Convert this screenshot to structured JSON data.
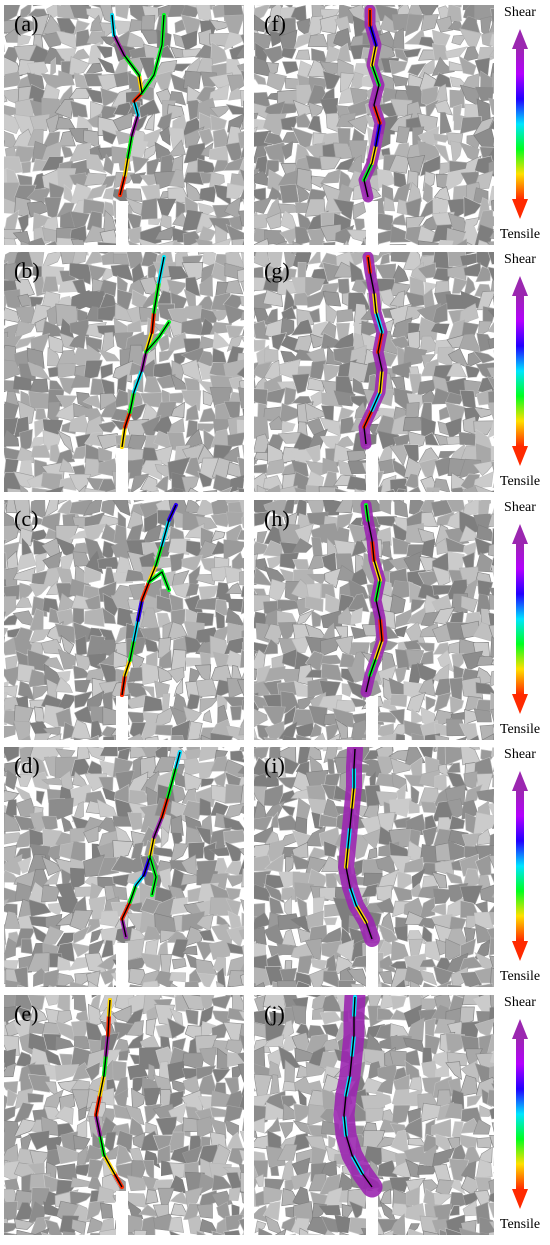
{
  "colors": {
    "grain_palette": [
      "#8c8c8c",
      "#9a9a9a",
      "#a8a8a8",
      "#b4b4b4",
      "#c0c0c0",
      "#cbcbcb",
      "#7e7e7e"
    ],
    "crack_core": "#000000",
    "shear": "#9b27b0",
    "tensile": "#ff2a00"
  },
  "colorbar": {
    "top_label": "Shear",
    "bottom_label": "Tensile",
    "gradient": [
      "#9b27b0",
      "#b400ff",
      "#2200ff",
      "#00e5ff",
      "#00ff20",
      "#ffe000",
      "#ff2a00"
    ]
  },
  "panels": [
    {
      "label": "(a)",
      "crack": [
        [
          116,
          190
        ],
        [
          121,
          170
        ],
        [
          124,
          152
        ],
        [
          128,
          130
        ],
        [
          134,
          110
        ],
        [
          130,
          96
        ],
        [
          138,
          88
        ],
        [
          135,
          70
        ],
        [
          120,
          50
        ],
        [
          110,
          30
        ],
        [
          108,
          10
        ]
      ],
      "branch": [
        [
          138,
          88
        ],
        [
          150,
          70
        ],
        [
          158,
          40
        ],
        [
          160,
          10
        ]
      ],
      "marks": [
        "#ff2a00",
        "#ffe000",
        "#00ff20",
        "#9b27b0",
        "#00e5ff"
      ],
      "halo": 0
    },
    {
      "label": "(b)",
      "crack": [
        [
          118,
          195
        ],
        [
          121,
          175
        ],
        [
          126,
          160
        ],
        [
          130,
          140
        ],
        [
          138,
          118
        ],
        [
          142,
          100
        ],
        [
          148,
          80
        ],
        [
          150,
          60
        ],
        [
          155,
          30
        ],
        [
          160,
          5
        ]
      ],
      "branch": [
        [
          142,
          100
        ],
        [
          155,
          85
        ],
        [
          165,
          70
        ]
      ],
      "marks": [
        "#ffe000",
        "#ff2a00",
        "#00ff20",
        "#00e5ff",
        "#9b27b0"
      ],
      "halo": 0
    },
    {
      "label": "(c)",
      "crack": [
        [
          118,
          195
        ],
        [
          121,
          175
        ],
        [
          126,
          160
        ],
        [
          130,
          140
        ],
        [
          134,
          120
        ],
        [
          138,
          100
        ],
        [
          145,
          82
        ],
        [
          152,
          65
        ],
        [
          158,
          45
        ],
        [
          165,
          20
        ],
        [
          172,
          5
        ]
      ],
      "branch": [
        [
          145,
          82
        ],
        [
          158,
          72
        ],
        [
          165,
          90
        ]
      ],
      "marks": [
        "#ff2a00",
        "#ffe000",
        "#00ff20",
        "#00e5ff",
        "#2200ff"
      ],
      "halo": 0
    },
    {
      "label": "(d)",
      "crack": [
        [
          122,
          190
        ],
        [
          118,
          172
        ],
        [
          126,
          155
        ],
        [
          132,
          138
        ],
        [
          140,
          128
        ],
        [
          146,
          110
        ],
        [
          150,
          90
        ],
        [
          158,
          70
        ],
        [
          164,
          50
        ],
        [
          172,
          20
        ],
        [
          176,
          5
        ]
      ],
      "branch": [
        [
          146,
          110
        ],
        [
          152,
          130
        ],
        [
          148,
          148
        ]
      ],
      "marks": [
        "#9b27b0",
        "#ff2a00",
        "#00ff20",
        "#00e5ff",
        "#2200ff",
        "#ffe000"
      ],
      "halo": 0
    },
    {
      "label": "(e)",
      "crack": [
        [
          118,
          192
        ],
        [
          110,
          178
        ],
        [
          100,
          160
        ],
        [
          96,
          140
        ],
        [
          92,
          120
        ],
        [
          96,
          100
        ],
        [
          100,
          80
        ],
        [
          102,
          60
        ],
        [
          104,
          40
        ],
        [
          105,
          20
        ],
        [
          106,
          5
        ]
      ],
      "branch": [],
      "marks": [
        "#ff2a00",
        "#ffe000",
        "#00ff20",
        "#9b27b0"
      ],
      "halo": 0
    },
    {
      "label": "(f)",
      "crack": [
        [
          114,
          192
        ],
        [
          110,
          175
        ],
        [
          118,
          158
        ],
        [
          122,
          140
        ],
        [
          126,
          118
        ],
        [
          120,
          100
        ],
        [
          125,
          80
        ],
        [
          118,
          60
        ],
        [
          122,
          40
        ],
        [
          116,
          20
        ],
        [
          116,
          5
        ]
      ],
      "branch": [],
      "marks": [
        "#9b27b0",
        "#00ff20",
        "#ffe000",
        "#2200ff",
        "#ff2a00"
      ],
      "halo": 1
    },
    {
      "label": "(g)",
      "crack": [
        [
          112,
          192
        ],
        [
          110,
          175
        ],
        [
          118,
          158
        ],
        [
          126,
          140
        ],
        [
          128,
          118
        ],
        [
          124,
          100
        ],
        [
          128,
          80
        ],
        [
          122,
          60
        ],
        [
          120,
          40
        ],
        [
          116,
          20
        ],
        [
          114,
          5
        ]
      ],
      "branch": [],
      "marks": [
        "#9b27b0",
        "#ff2a00",
        "#00e5ff",
        "#ffe000"
      ],
      "halo": 1
    },
    {
      "label": "(h)",
      "crack": [
        [
          112,
          192
        ],
        [
          116,
          175
        ],
        [
          122,
          158
        ],
        [
          128,
          140
        ],
        [
          126,
          118
        ],
        [
          122,
          100
        ],
        [
          126,
          80
        ],
        [
          120,
          60
        ],
        [
          118,
          40
        ],
        [
          114,
          20
        ],
        [
          112,
          5
        ]
      ],
      "branch": [],
      "marks": [
        "#9b27b0",
        "#00ff20",
        "#ffe000",
        "#ff2a00"
      ],
      "halo": 1
    },
    {
      "label": "(i)",
      "crack": [
        [
          118,
          192
        ],
        [
          112,
          175
        ],
        [
          102,
          158
        ],
        [
          96,
          140
        ],
        [
          92,
          120
        ],
        [
          94,
          100
        ],
        [
          96,
          80
        ],
        [
          98,
          60
        ],
        [
          100,
          40
        ],
        [
          100,
          20
        ],
        [
          101,
          2
        ]
      ],
      "branch": [],
      "marks": [
        "#9b27b0",
        "#ffe000",
        "#00e5ff"
      ],
      "halo": 2
    },
    {
      "label": "(j)",
      "crack": [
        [
          118,
          192
        ],
        [
          108,
          178
        ],
        [
          98,
          160
        ],
        [
          92,
          140
        ],
        [
          90,
          120
        ],
        [
          92,
          100
        ],
        [
          96,
          80
        ],
        [
          98,
          60
        ],
        [
          100,
          40
        ],
        [
          100,
          20
        ],
        [
          101,
          2
        ]
      ],
      "branch": [],
      "marks": [
        "#9b27b0",
        "#00e5ff"
      ],
      "halo": 3
    }
  ]
}
